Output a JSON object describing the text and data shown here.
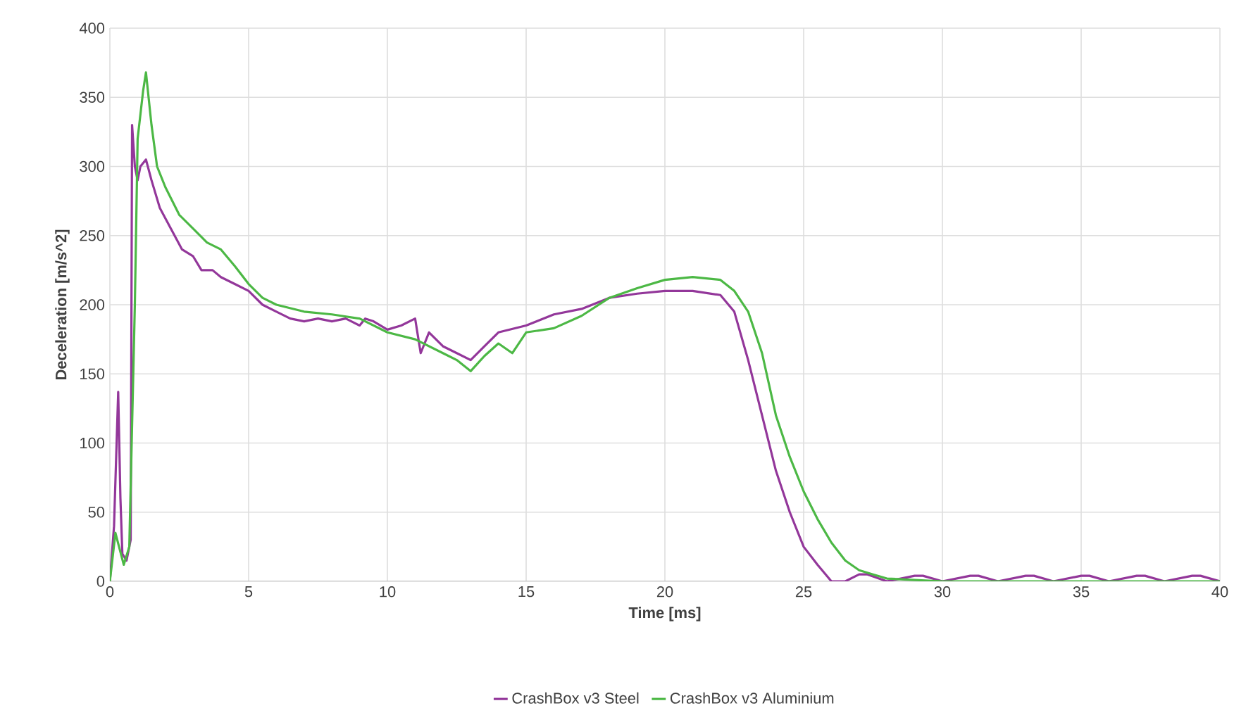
{
  "chart_data": {
    "type": "line",
    "xlabel": "Time [ms]",
    "ylabel": "Deceleration [m/s^2]",
    "xlim": [
      0,
      40
    ],
    "ylim": [
      0,
      400
    ],
    "xticks": [
      0,
      5,
      10,
      15,
      20,
      25,
      30,
      35,
      40
    ],
    "yticks": [
      0,
      50,
      100,
      150,
      200,
      250,
      300,
      350,
      400
    ],
    "grid": true,
    "legend": "bottom",
    "marker": "none",
    "line_style": "solid",
    "series": [
      {
        "name": "CrashBox v3 Steel",
        "color": "#93379a",
        "x": [
          0,
          0.15,
          0.3,
          0.38,
          0.45,
          0.6,
          0.75,
          0.8,
          0.9,
          1.0,
          1.1,
          1.3,
          1.5,
          1.8,
          2.2,
          2.6,
          3,
          3.3,
          3.7,
          4,
          4.5,
          5,
          5.5,
          6,
          6.5,
          7,
          7.5,
          8,
          8.5,
          9,
          9.2,
          9.5,
          10,
          10.5,
          11,
          11.2,
          11.5,
          12,
          12.5,
          13,
          13.5,
          14,
          15,
          16,
          17,
          18,
          19,
          20,
          21,
          22,
          22.5,
          23,
          23.5,
          24,
          24.5,
          25,
          25.5,
          26,
          26.5,
          27,
          27.3,
          28,
          29,
          29.3,
          30,
          31,
          31.3,
          32,
          33,
          33.3,
          34,
          35,
          35.3,
          36,
          37,
          37.3,
          38,
          39,
          39.3,
          40
        ],
        "values": [
          0,
          40,
          137,
          60,
          20,
          15,
          30,
          330,
          300,
          290,
          300,
          305,
          290,
          270,
          255,
          240,
          235,
          225,
          225,
          220,
          215,
          210,
          200,
          195,
          190,
          188,
          190,
          188,
          190,
          185,
          190,
          188,
          182,
          185,
          190,
          165,
          180,
          170,
          165,
          160,
          170,
          180,
          185,
          193,
          197,
          205,
          208,
          210,
          210,
          207,
          195,
          160,
          120,
          80,
          50,
          25,
          12,
          0,
          0,
          5,
          5,
          0,
          4,
          4,
          0,
          4,
          4,
          0,
          4,
          4,
          0,
          4,
          4,
          0,
          4,
          4,
          0,
          4,
          4,
          0
        ]
      },
      {
        "name": "CrashBox v3 Aluminium",
        "color": "#4cb845",
        "x": [
          0,
          0.2,
          0.5,
          0.7,
          0.9,
          1.0,
          1.2,
          1.3,
          1.5,
          1.7,
          2,
          2.5,
          3,
          3.5,
          4,
          4.5,
          5,
          5.5,
          6,
          7,
          8,
          9,
          10,
          11,
          12,
          12.5,
          13,
          13.5,
          14,
          14.5,
          15,
          16,
          17,
          18,
          19,
          20,
          21,
          22,
          22.5,
          23,
          23.5,
          24,
          24.5,
          25,
          25.5,
          26,
          26.5,
          27,
          27.5,
          28,
          29,
          30,
          40
        ],
        "values": [
          0,
          35,
          12,
          25,
          200,
          320,
          355,
          368,
          330,
          300,
          285,
          265,
          255,
          245,
          240,
          228,
          215,
          205,
          200,
          195,
          193,
          190,
          180,
          175,
          165,
          160,
          152,
          163,
          172,
          165,
          180,
          183,
          192,
          205,
          212,
          218,
          220,
          218,
          210,
          195,
          165,
          120,
          90,
          65,
          45,
          28,
          15,
          8,
          5,
          2,
          1,
          0,
          0
        ]
      }
    ]
  }
}
